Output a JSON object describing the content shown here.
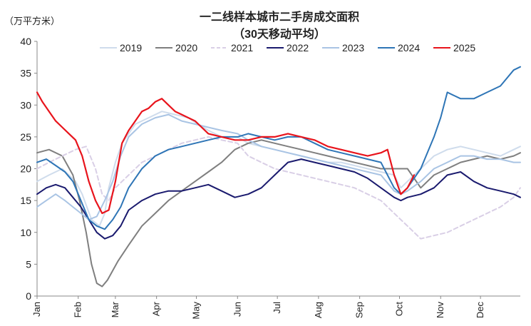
{
  "chart_data": {
    "type": "line",
    "title": "一二线样本城市二手房成交面积",
    "subtitle": "（30天移动平均）",
    "ylabel": "（万平方米）",
    "xlabel": "",
    "ylim": [
      0,
      40
    ],
    "yticks": [
      0,
      5,
      10,
      15,
      20,
      25,
      30,
      35,
      40
    ],
    "xlim": [
      1,
      365
    ],
    "month_ticks": [
      {
        "label": "Jan",
        "day": 1
      },
      {
        "label": "Feb",
        "day": 32
      },
      {
        "label": "Mar",
        "day": 60
      },
      {
        "label": "Apr",
        "day": 91
      },
      {
        "label": "May",
        "day": 121
      },
      {
        "label": "Jun",
        "day": 152
      },
      {
        "label": "Jul",
        "day": 182
      },
      {
        "label": "Aug",
        "day": 213
      },
      {
        "label": "Sep",
        "day": 244
      },
      {
        "label": "Oct",
        "day": 274
      },
      {
        "label": "Nov",
        "day": 305
      },
      {
        "label": "Dec",
        "day": 335
      }
    ],
    "legend_position": "top",
    "grid": false,
    "series": [
      {
        "name": "2019",
        "color": "#cfdcec",
        "dash": "solid",
        "x": [
          1,
          10,
          20,
          30,
          35,
          42,
          48,
          52,
          55,
          60,
          65,
          75,
          85,
          95,
          105,
          115,
          122,
          130,
          140,
          152,
          160,
          170,
          180,
          190,
          200,
          210,
          220,
          230,
          240,
          250,
          260,
          270,
          275,
          280,
          290,
          300,
          310,
          320,
          330,
          340,
          350,
          360,
          365
        ],
        "y": [
          18,
          19,
          20,
          18,
          16,
          12,
          11,
          13,
          17,
          21,
          24,
          27,
          28,
          29,
          28.5,
          28,
          27,
          26,
          25,
          25,
          24,
          23.5,
          23,
          22.5,
          22,
          21.5,
          21,
          21,
          20.5,
          20,
          19.5,
          19,
          17,
          18,
          20,
          22,
          23,
          23.5,
          23,
          22.5,
          22,
          23,
          23.5
        ]
      },
      {
        "name": "2020",
        "color": "#7f7f7f",
        "dash": "solid",
        "x": [
          1,
          10,
          20,
          28,
          33,
          38,
          42,
          46,
          50,
          54,
          58,
          62,
          70,
          80,
          90,
          100,
          110,
          120,
          130,
          140,
          150,
          160,
          170,
          180,
          190,
          200,
          210,
          220,
          230,
          240,
          250,
          260,
          270,
          280,
          290,
          300,
          310,
          320,
          330,
          340,
          350,
          360,
          365
        ],
        "y": [
          22.5,
          23,
          22,
          19,
          15,
          10,
          5,
          2,
          1.5,
          2.5,
          4,
          5.5,
          8,
          11,
          13,
          15,
          16.5,
          18,
          19.5,
          21,
          23,
          24,
          24.5,
          24,
          23.5,
          23,
          22.5,
          22,
          21.5,
          21,
          20.5,
          20,
          20,
          20,
          17,
          19,
          20,
          21,
          21.5,
          22,
          21.5,
          22,
          22.5
        ]
      },
      {
        "name": "2021",
        "color": "#d9cfe6",
        "dash": "dashed",
        "x": [
          1,
          10,
          20,
          30,
          38,
          45,
          50,
          55,
          60,
          70,
          80,
          90,
          100,
          110,
          120,
          130,
          140,
          152,
          160,
          170,
          180,
          190,
          200,
          210,
          220,
          230,
          240,
          250,
          260,
          270,
          280,
          290,
          300,
          310,
          320,
          330,
          340,
          350,
          360,
          365
        ],
        "y": [
          20,
          21,
          22,
          23,
          23.5,
          20,
          16,
          15,
          17,
          19,
          21,
          22,
          23,
          24,
          24.5,
          25,
          24.5,
          24,
          22,
          21,
          20,
          19.5,
          19,
          18.5,
          18,
          17.5,
          17,
          16,
          15,
          13,
          11,
          9,
          9.5,
          10,
          11,
          12,
          13,
          14,
          15.5,
          17
        ]
      },
      {
        "name": "2022",
        "color": "#1a1a6e",
        "dash": "solid",
        "x": [
          1,
          8,
          15,
          22,
          28,
          34,
          40,
          46,
          52,
          58,
          64,
          70,
          80,
          90,
          100,
          110,
          120,
          130,
          140,
          150,
          160,
          170,
          180,
          190,
          200,
          210,
          220,
          230,
          240,
          250,
          260,
          270,
          275,
          280,
          290,
          300,
          310,
          320,
          330,
          340,
          350,
          360,
          365
        ],
        "y": [
          16,
          17,
          17.5,
          17,
          15.5,
          14,
          12,
          10,
          9,
          9.5,
          11,
          13.5,
          15,
          16,
          16.5,
          16.5,
          17,
          17.5,
          16.5,
          15.5,
          16,
          17,
          19,
          21,
          21.5,
          21,
          20.5,
          20,
          19.5,
          18.5,
          17,
          15.5,
          15,
          15.5,
          16,
          17,
          19,
          19.5,
          18,
          17,
          16.5,
          16,
          15.5
        ]
      },
      {
        "name": "2023",
        "color": "#a9c4e4",
        "dash": "solid",
        "x": [
          1,
          8,
          15,
          22,
          28,
          34,
          40,
          46,
          52,
          58,
          64,
          70,
          80,
          90,
          100,
          110,
          120,
          130,
          140,
          152,
          160,
          170,
          180,
          190,
          200,
          210,
          220,
          230,
          240,
          250,
          260,
          270,
          275,
          280,
          290,
          300,
          310,
          320,
          330,
          340,
          350,
          360,
          365
        ],
        "y": [
          14,
          15,
          16,
          15,
          14,
          13,
          12,
          12.5,
          15,
          18,
          22,
          25,
          27,
          28,
          28.5,
          27.5,
          27,
          26.5,
          26,
          25.5,
          24.5,
          23.5,
          23,
          22.5,
          22,
          21.5,
          21,
          20.5,
          20,
          19.5,
          19,
          16.5,
          16,
          16.5,
          18,
          20,
          21,
          22,
          22,
          21.5,
          21.5,
          21,
          21
        ]
      },
      {
        "name": "2024",
        "color": "#2e75b6",
        "dash": "solid",
        "x": [
          1,
          8,
          15,
          22,
          28,
          34,
          40,
          46,
          52,
          58,
          64,
          70,
          80,
          90,
          100,
          110,
          120,
          130,
          140,
          152,
          160,
          170,
          180,
          190,
          200,
          210,
          220,
          230,
          240,
          250,
          260,
          270,
          275,
          280,
          290,
          300,
          305,
          310,
          315,
          320,
          330,
          340,
          350,
          360,
          365
        ],
        "y": [
          21,
          21.5,
          20.5,
          19.5,
          18,
          15,
          12,
          11,
          10.5,
          12,
          14,
          17,
          20,
          22,
          23,
          23.5,
          24,
          24.5,
          25,
          25,
          25.5,
          25,
          24.5,
          25,
          25,
          24,
          23,
          22.5,
          22,
          21.5,
          21,
          17,
          16,
          17,
          20,
          25,
          28,
          32,
          31.5,
          31,
          31,
          32,
          33,
          35.5,
          36
        ]
      },
      {
        "name": "2025",
        "color": "#e8141c",
        "dash": "solid",
        "x": [
          1,
          5,
          10,
          15,
          20,
          25,
          30,
          35,
          40,
          45,
          50,
          55,
          60,
          65,
          70,
          75,
          80,
          85,
          90,
          95,
          100,
          105,
          110,
          115,
          120,
          125,
          130,
          140,
          150,
          160,
          170,
          180,
          190,
          200,
          210,
          220,
          230,
          240,
          250,
          260,
          265,
          270,
          275,
          280,
          285
        ],
        "y": [
          32,
          30.5,
          29,
          27.5,
          26.5,
          25.5,
          24.5,
          22,
          18,
          15,
          13,
          13.5,
          18,
          24,
          26,
          27.5,
          29,
          29.5,
          30.5,
          31,
          30,
          29,
          28.5,
          28,
          27.5,
          26.5,
          25.5,
          25,
          24.5,
          24.5,
          25,
          25,
          25.5,
          25,
          24.5,
          23.5,
          23,
          22.5,
          22,
          22.5,
          23,
          19,
          16,
          17,
          19
        ]
      }
    ]
  }
}
